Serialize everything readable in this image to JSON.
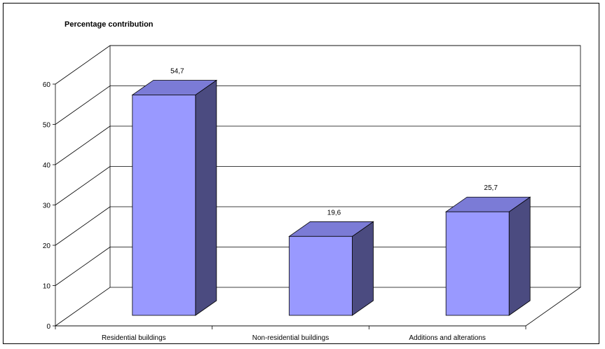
{
  "chart_data": {
    "type": "bar",
    "title": "Percentage contribution",
    "categories": [
      "Residential buildings",
      "Non-residential buildings",
      "Additions and alterations"
    ],
    "values": [
      54.7,
      19.6,
      25.7
    ],
    "data_labels": [
      "54,7",
      "19,6",
      "25,7"
    ],
    "ylim": [
      0,
      60
    ],
    "yticks": [
      "0",
      "10",
      "20",
      "30",
      "40",
      "50",
      "60"
    ],
    "grid": true,
    "style": "3d-column",
    "colors": {
      "front": "#9999ff",
      "side": "#4b4b80",
      "top": "#7b7bd6",
      "grid": "#000000"
    }
  }
}
